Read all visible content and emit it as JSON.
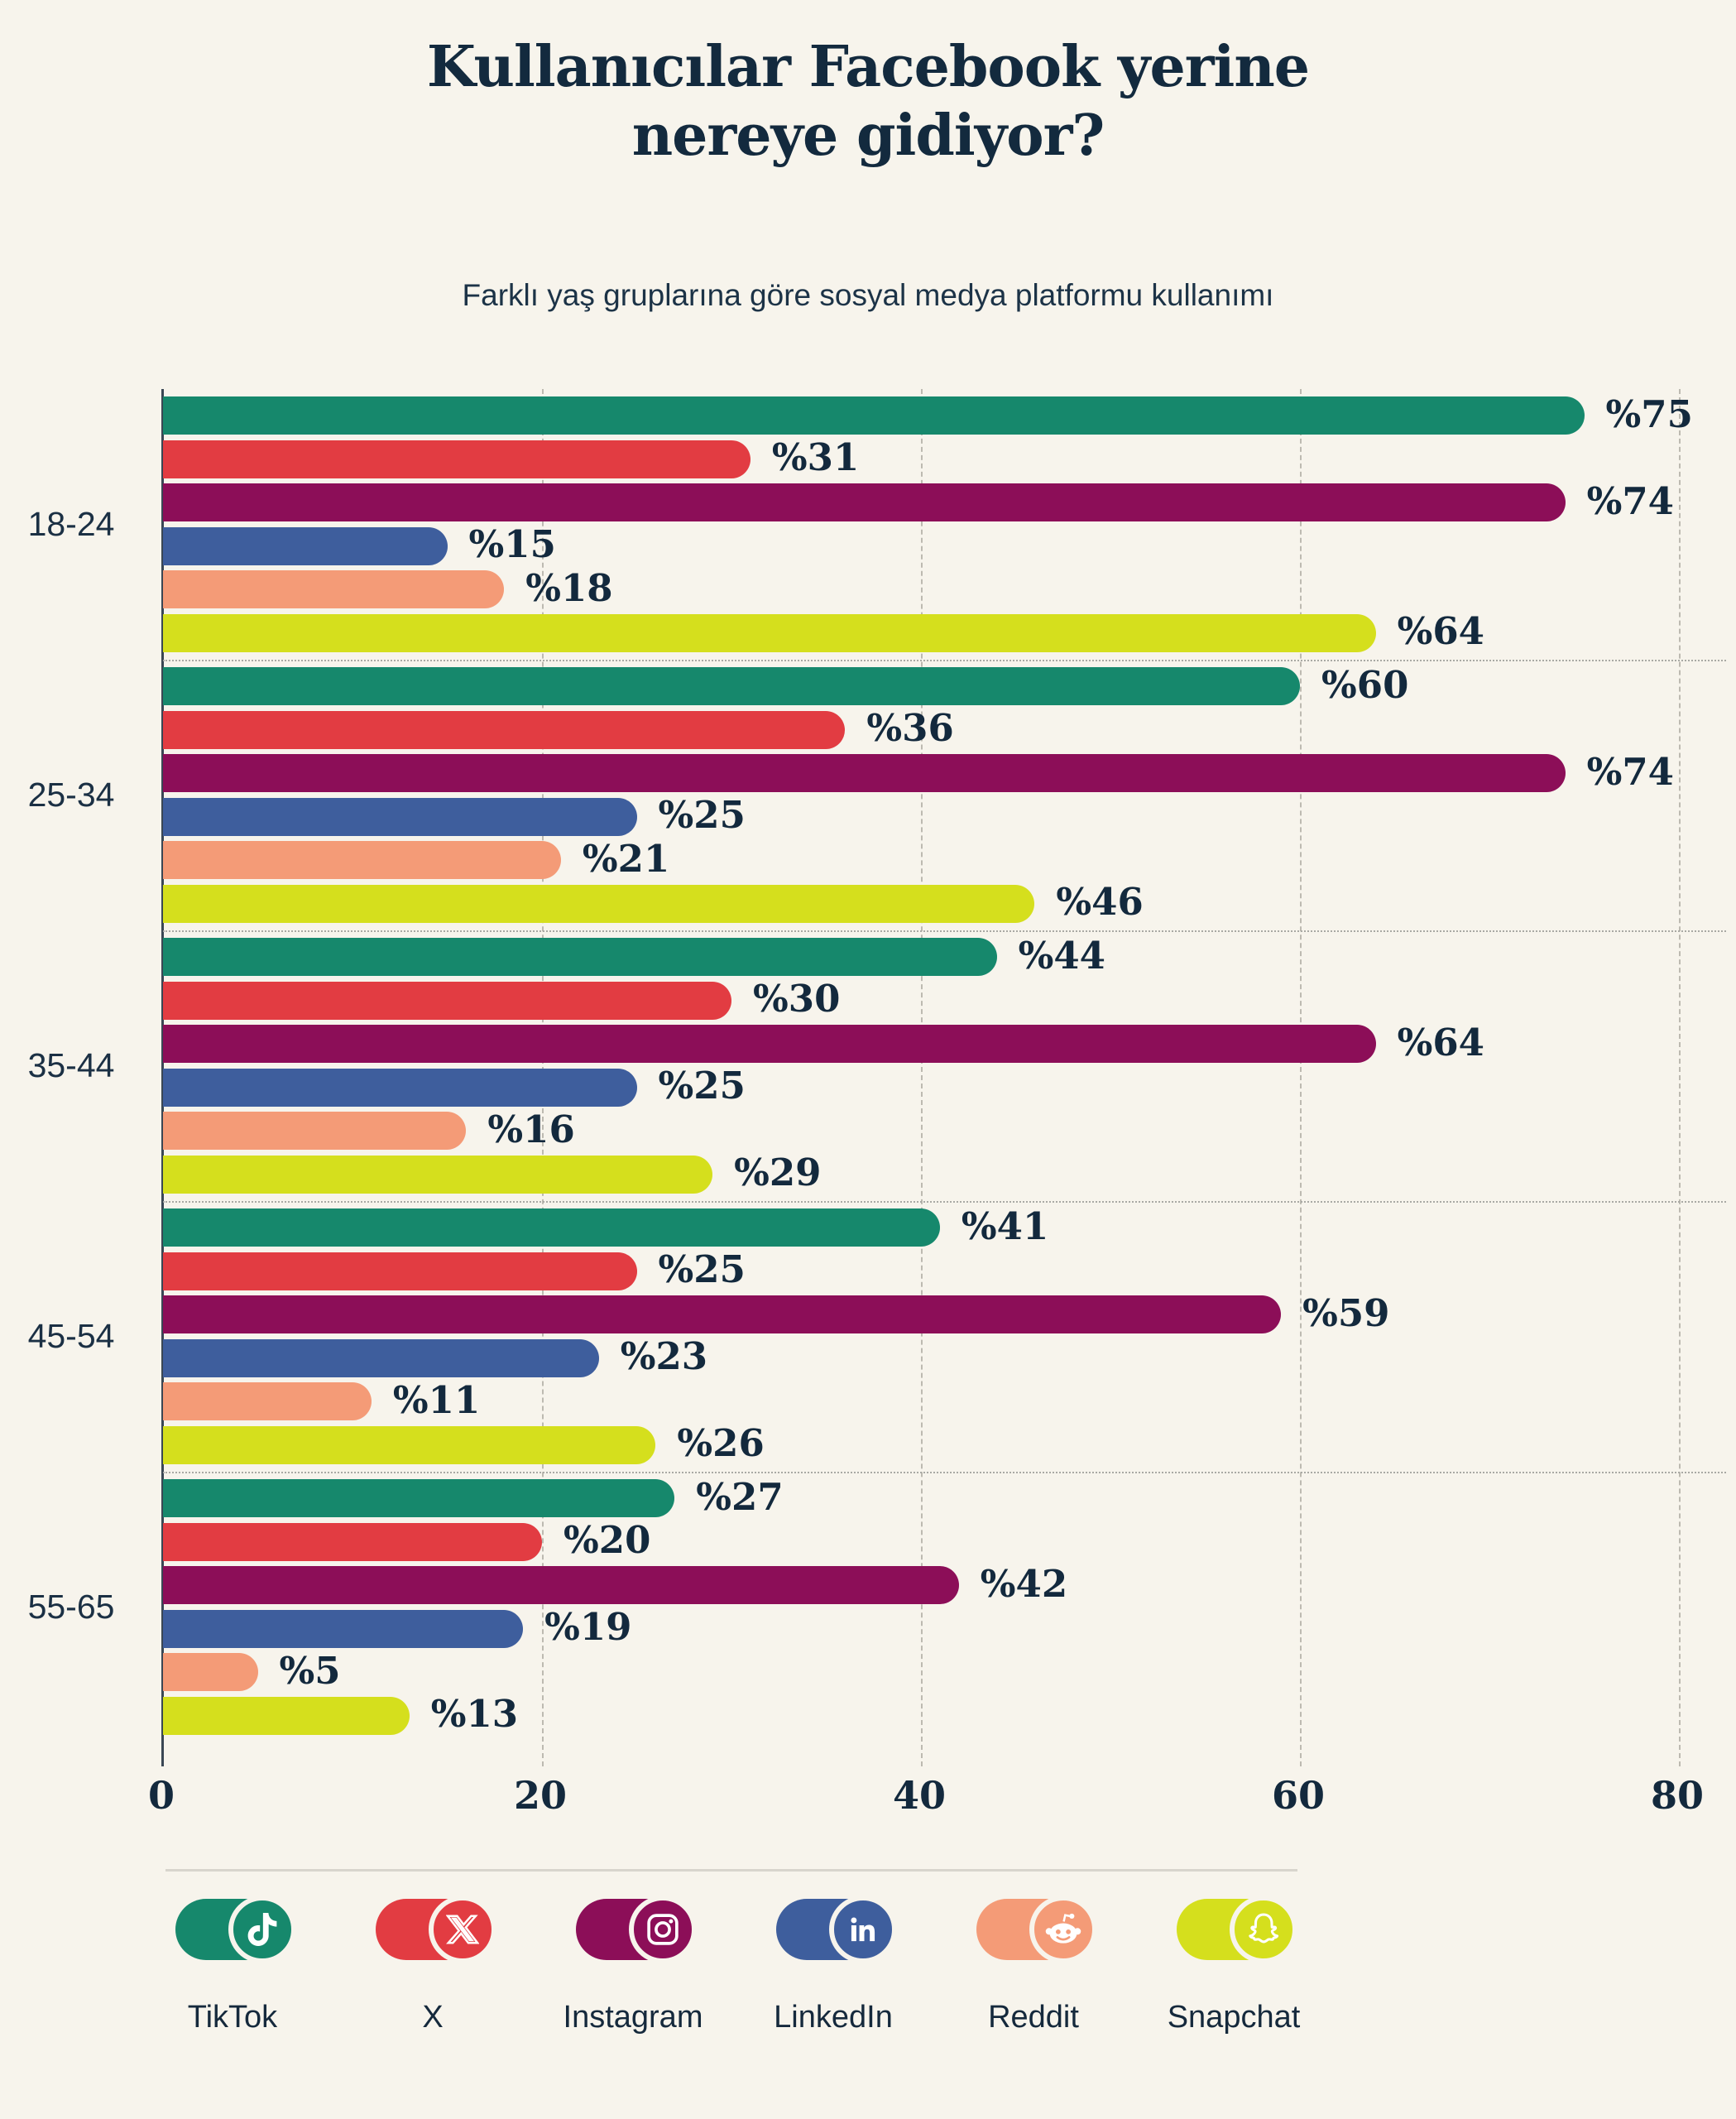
{
  "header": {
    "title_lines": [
      "Kullanıcılar Facebook yerine",
      "nereye gidiyor?"
    ]
  },
  "subtitle": "Farklı yaş gruplarına göre sosyal medya platformu kullanımı",
  "colors": {
    "background": "#f7f4ec",
    "text": "#132a3e",
    "gridline": "#bdbab1",
    "separator": "#a9a9a4",
    "axis": "#3a4754"
  },
  "chart_data": {
    "type": "bar",
    "orientation": "horizontal",
    "title": "Kullanıcılar Facebook yerine nereye gidiyor?",
    "subtitle": "Farklı yaş gruplarına göre sosyal medya platformu kullanımı",
    "categories": [
      "18-24",
      "25-34",
      "35-44",
      "45-54",
      "55-65"
    ],
    "series": [
      {
        "name": "TikTok",
        "icon": "tiktok-icon",
        "color": "#16886C",
        "values": [
          75,
          60,
          44,
          41,
          27
        ]
      },
      {
        "name": "X",
        "icon": "x-icon",
        "color": "#E23C42",
        "values": [
          31,
          36,
          30,
          25,
          20
        ]
      },
      {
        "name": "Instagram",
        "icon": "instagram-icon",
        "color": "#8C0E58",
        "values": [
          74,
          74,
          64,
          59,
          42
        ]
      },
      {
        "name": "LinkedIn",
        "icon": "linkedin-icon",
        "color": "#3E5E9D",
        "values": [
          15,
          25,
          25,
          23,
          19
        ]
      },
      {
        "name": "Reddit",
        "icon": "reddit-icon",
        "color": "#F49B77",
        "values": [
          18,
          21,
          16,
          11,
          5
        ]
      },
      {
        "name": "Snapchat",
        "icon": "snapchat-icon",
        "color": "#D5DF1D",
        "values": [
          64,
          46,
          29,
          26,
          13
        ]
      }
    ],
    "value_prefix": "%",
    "x_ticks": [
      0,
      20,
      40,
      60,
      80
    ],
    "xlim": [
      0,
      80
    ],
    "grid": "vertical-dashed",
    "legend_position": "bottom"
  }
}
